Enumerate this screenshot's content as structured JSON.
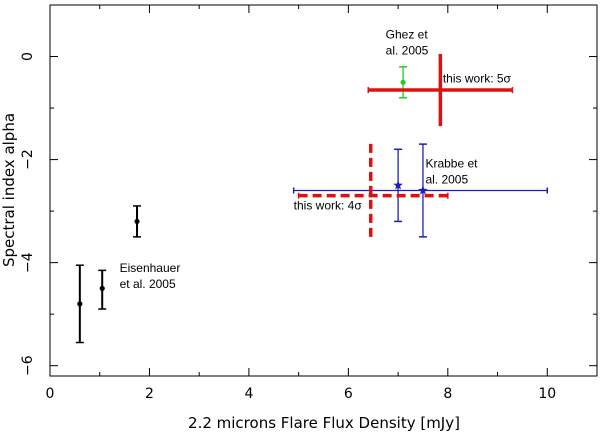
{
  "chart_data": {
    "type": "scatter",
    "xlabel": "2.2 microns Flare Flux Density [mJy]",
    "ylabel": "Spectral index alpha",
    "xlim": [
      0,
      11
    ],
    "ylim": [
      -6.2,
      1.0
    ],
    "x_ticks": [
      0,
      2,
      4,
      6,
      8,
      10
    ],
    "x_tick_labels": [
      "0",
      "2",
      "4",
      "6",
      "8",
      "10"
    ],
    "y_ticks": [
      0,
      -2,
      -4,
      -6
    ],
    "y_tick_labels": [
      "0",
      "−2",
      "−4",
      "−6"
    ],
    "grid": false,
    "series": [
      {
        "color": "#000000",
        "marker": "dot",
        "style": "solid",
        "points": [
          {
            "x": 0.6,
            "y": -4.8,
            "yerr_low": -5.55,
            "yerr_high": -4.05
          },
          {
            "x": 1.05,
            "y": -4.5,
            "yerr_low": -4.9,
            "yerr_high": -4.15
          },
          {
            "x": 1.75,
            "y": -3.2,
            "yerr_low": -3.5,
            "yerr_high": -2.9
          }
        ]
      },
      {
        "color": "#22cc22",
        "marker": "dot",
        "style": "solid",
        "points": [
          {
            "x": 7.1,
            "y": -0.5,
            "yerr_low": -0.8,
            "yerr_high": -0.2
          }
        ]
      },
      {
        "color": "#1f1fb4",
        "marker": "star",
        "style": "solid",
        "points": [
          {
            "x": 7.0,
            "y": -2.5,
            "yerr_low": -3.2,
            "yerr_high": -1.8
          },
          {
            "x": 7.5,
            "y": -2.6,
            "yerr_low": -3.5,
            "yerr_high": -1.7,
            "xerr_low": 4.9,
            "xerr_high": 10.0
          }
        ]
      },
      {
        "color": "#e01010",
        "marker": "none",
        "style": "solid",
        "points": [
          {
            "x": 7.85,
            "y": -0.65,
            "yerr_low": -1.35,
            "yerr_high": 0.05,
            "xerr_low": 6.4,
            "xerr_high": 9.3
          }
        ]
      },
      {
        "color": "#e01010",
        "marker": "none",
        "style": "dashed",
        "points": [
          {
            "x": 6.45,
            "y": -2.7,
            "yerr_low": -3.5,
            "yerr_high": -1.6,
            "xerr_low": 5.0,
            "xerr_high": 8.0
          }
        ]
      }
    ],
    "annotations": [
      {
        "lines": [
          "Ghez et",
          "al. 2005"
        ],
        "x": 6.75,
        "y": 0.35
      },
      {
        "lines": [
          "this work: 5σ"
        ],
        "x": 7.9,
        "y": -0.5
      },
      {
        "lines": [
          "Krabbe et",
          "al. 2005"
        ],
        "x": 7.55,
        "y": -2.15
      },
      {
        "lines": [
          "this work: 4σ"
        ],
        "x": 4.9,
        "y": -2.97
      },
      {
        "lines": [
          "Eisenhauer",
          "et al. 2005"
        ],
        "x": 1.4,
        "y": -4.18
      }
    ]
  }
}
